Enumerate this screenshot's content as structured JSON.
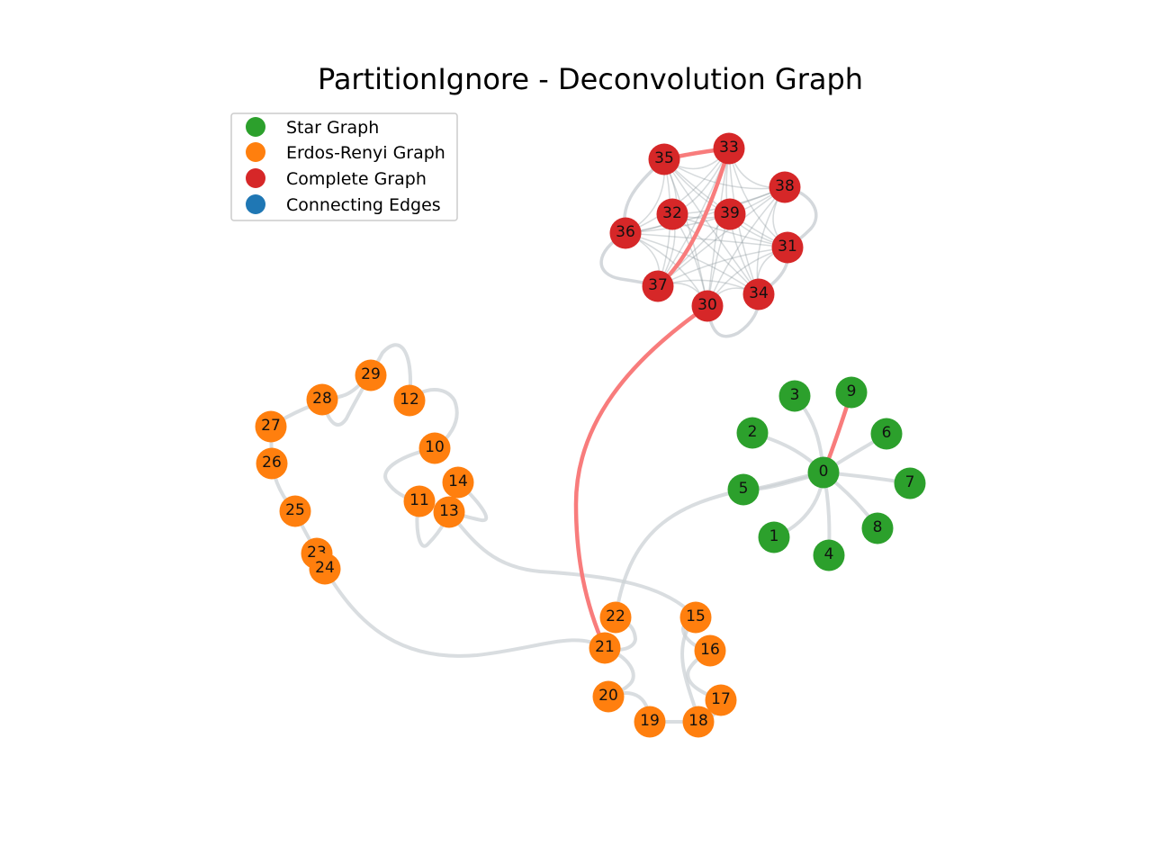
{
  "title": "PartitionIgnore - Deconvolution Graph",
  "colors": {
    "star": "#2ca02c",
    "erdos": "#ff7f0e",
    "complete": "#d62728",
    "connecting": "#1f77b4",
    "edge": "#ccd1d6",
    "complete_edge": "#8a949c",
    "red_edge": "#f87c7c"
  },
  "legend": {
    "items": [
      {
        "label": "Star Graph",
        "color": "#2ca02c"
      },
      {
        "label": "Erdos-Renyi Graph",
        "color": "#ff7f0e"
      },
      {
        "label": "Complete Graph",
        "color": "#d62728"
      },
      {
        "label": "Connecting Edges",
        "color": "#1f77b4"
      }
    ]
  },
  "chart_data": {
    "type": "network",
    "nodes": [
      {
        "id": "0",
        "group": "star"
      },
      {
        "id": "1",
        "group": "star"
      },
      {
        "id": "2",
        "group": "star"
      },
      {
        "id": "3",
        "group": "star"
      },
      {
        "id": "4",
        "group": "star"
      },
      {
        "id": "5",
        "group": "star"
      },
      {
        "id": "6",
        "group": "star"
      },
      {
        "id": "7",
        "group": "star"
      },
      {
        "id": "8",
        "group": "star"
      },
      {
        "id": "9",
        "group": "star"
      },
      {
        "id": "10",
        "group": "erdos"
      },
      {
        "id": "11",
        "group": "erdos"
      },
      {
        "id": "12",
        "group": "erdos"
      },
      {
        "id": "13",
        "group": "erdos"
      },
      {
        "id": "14",
        "group": "erdos"
      },
      {
        "id": "15",
        "group": "erdos"
      },
      {
        "id": "16",
        "group": "erdos"
      },
      {
        "id": "17",
        "group": "erdos"
      },
      {
        "id": "18",
        "group": "erdos"
      },
      {
        "id": "19",
        "group": "erdos"
      },
      {
        "id": "20",
        "group": "erdos"
      },
      {
        "id": "21",
        "group": "erdos"
      },
      {
        "id": "22",
        "group": "erdos"
      },
      {
        "id": "23",
        "group": "erdos"
      },
      {
        "id": "24",
        "group": "erdos"
      },
      {
        "id": "25",
        "group": "erdos"
      },
      {
        "id": "26",
        "group": "erdos"
      },
      {
        "id": "27",
        "group": "erdos"
      },
      {
        "id": "28",
        "group": "erdos"
      },
      {
        "id": "29",
        "group": "erdos"
      },
      {
        "id": "30",
        "group": "complete"
      },
      {
        "id": "31",
        "group": "complete"
      },
      {
        "id": "32",
        "group": "complete"
      },
      {
        "id": "33",
        "group": "complete"
      },
      {
        "id": "34",
        "group": "complete"
      },
      {
        "id": "35",
        "group": "complete"
      },
      {
        "id": "36",
        "group": "complete"
      },
      {
        "id": "37",
        "group": "complete"
      },
      {
        "id": "38",
        "group": "complete"
      },
      {
        "id": "39",
        "group": "complete"
      }
    ],
    "highlighted_edges": [
      [
        "35",
        "33"
      ],
      [
        "33",
        "37"
      ],
      [
        "30",
        "21"
      ],
      [
        "0",
        "9"
      ]
    ]
  }
}
